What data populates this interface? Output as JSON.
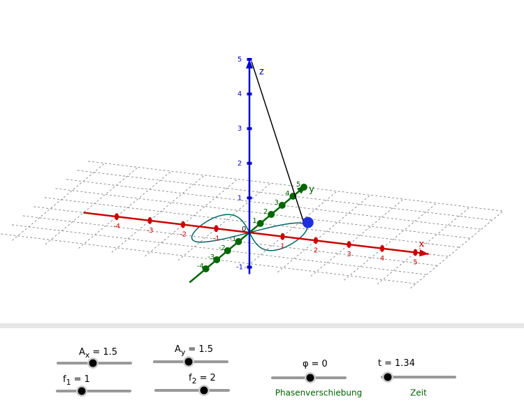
{
  "view3d": {
    "axes": {
      "x": {
        "label": "x",
        "color": "#cc0000",
        "ticks": [
          -4,
          -3,
          -2,
          -1,
          1,
          2,
          3,
          4,
          5
        ]
      },
      "y": {
        "label": "y",
        "color": "#006600",
        "ticks": [
          -4,
          -3,
          -2,
          -1,
          1,
          2,
          3,
          4,
          5
        ]
      },
      "z": {
        "label": "z",
        "color": "#0000cc",
        "ticks": [
          -1,
          1,
          2,
          3,
          4,
          5
        ]
      }
    },
    "origin": 0
  },
  "sliders": [
    {
      "name": "A",
      "sub": "x",
      "eq": "=",
      "value": 1.5
    },
    {
      "name": "A",
      "sub": "y",
      "eq": "=",
      "value": 1.5
    },
    {
      "name": "f",
      "sub": "1",
      "eq": "=",
      "value": 1
    },
    {
      "name": "f",
      "sub": "2",
      "eq": "=",
      "value": 2
    },
    {
      "name": "φ",
      "eq": "=",
      "value": 0,
      "caption": "Phasenverschiebung"
    },
    {
      "name": "t",
      "eq": "=",
      "value": 1.34,
      "caption": "Zeit"
    }
  ]
}
